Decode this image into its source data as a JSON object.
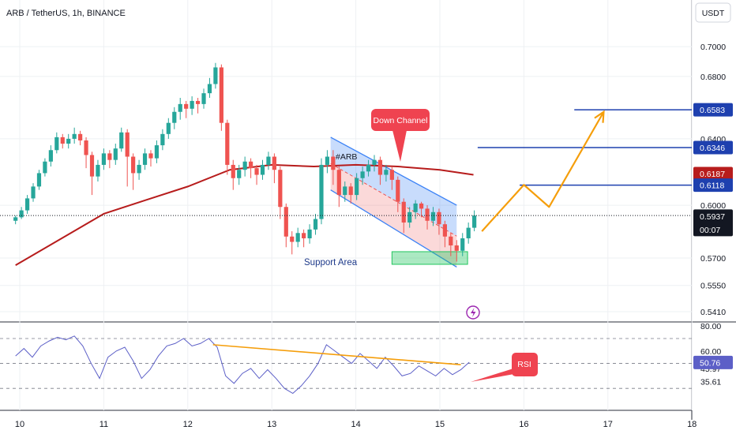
{
  "header": {
    "title": "ARB / TetherUS, 1h, BINANCE"
  },
  "currency_button": {
    "label": "USDT"
  },
  "colors": {
    "up": "#26a69a",
    "down": "#ef5350",
    "ma": "#b71c1c",
    "level": "#1e40af",
    "projection": "#f59e0b",
    "rsi": "#5c5fc7",
    "channel": "#3b82f6",
    "support": "#22c55e"
  },
  "chart_data": {
    "type": "candlestick",
    "title": "ARB / TetherUS, 1h, BINANCE",
    "x_ticks": [
      "10",
      "11",
      "12",
      "13",
      "14",
      "15",
      "16",
      "17",
      "18"
    ],
    "y_ticks": [
      "0.7000",
      "0.6800",
      "0.6400",
      "0.6000",
      "0.5700",
      "0.5550",
      "0.5410"
    ],
    "price_tags": [
      {
        "value": "0.6583",
        "color": "#1e40af"
      },
      {
        "value": "0.6346",
        "color": "#1e40af"
      },
      {
        "value": "0.6187",
        "color": "#b71c1c"
      },
      {
        "value": "0.6118",
        "color": "#1e40af"
      },
      {
        "value": "0.5937",
        "color": "#131722"
      }
    ],
    "countdown": "00:07",
    "horizontal_levels": [
      0.6583,
      0.6346,
      0.6118
    ],
    "moving_average": [
      [
        9.95,
        0.566
      ],
      [
        10.5,
        0.581
      ],
      [
        11.0,
        0.595
      ],
      [
        11.5,
        0.603
      ],
      [
        12.0,
        0.611
      ],
      [
        12.5,
        0.621
      ],
      [
        13.0,
        0.624
      ],
      [
        13.5,
        0.623
      ],
      [
        14.0,
        0.624
      ],
      [
        14.5,
        0.623
      ],
      [
        15.0,
        0.621
      ],
      [
        15.4,
        0.618
      ]
    ],
    "candles": [
      [
        9.95,
        0.591,
        0.593,
        0.589,
        0.594
      ],
      [
        10.02,
        0.593,
        0.597,
        0.592,
        0.599
      ],
      [
        10.09,
        0.597,
        0.604,
        0.595,
        0.606
      ],
      [
        10.16,
        0.604,
        0.611,
        0.602,
        0.613
      ],
      [
        10.23,
        0.611,
        0.619,
        0.609,
        0.621
      ],
      [
        10.3,
        0.619,
        0.626,
        0.617,
        0.628
      ],
      [
        10.37,
        0.626,
        0.633,
        0.623,
        0.636
      ],
      [
        10.44,
        0.633,
        0.641,
        0.631,
        0.644
      ],
      [
        10.51,
        0.641,
        0.637,
        0.634,
        0.643
      ],
      [
        10.58,
        0.637,
        0.64,
        0.634,
        0.643
      ],
      [
        10.65,
        0.64,
        0.643,
        0.637,
        0.647
      ],
      [
        10.72,
        0.643,
        0.639,
        0.636,
        0.645
      ],
      [
        10.79,
        0.639,
        0.63,
        0.622,
        0.641
      ],
      [
        10.86,
        0.63,
        0.617,
        0.606,
        0.632
      ],
      [
        10.93,
        0.617,
        0.624,
        0.614,
        0.627
      ],
      [
        11.0,
        0.624,
        0.631,
        0.621,
        0.634
      ],
      [
        11.07,
        0.631,
        0.627,
        0.622,
        0.633
      ],
      [
        11.14,
        0.627,
        0.634,
        0.624,
        0.637
      ],
      [
        11.21,
        0.634,
        0.644,
        0.632,
        0.647
      ],
      [
        11.28,
        0.644,
        0.629,
        0.611,
        0.646
      ],
      [
        11.35,
        0.629,
        0.619,
        0.609,
        0.631
      ],
      [
        11.42,
        0.619,
        0.624,
        0.615,
        0.627
      ],
      [
        11.49,
        0.624,
        0.631,
        0.621,
        0.634
      ],
      [
        11.56,
        0.631,
        0.628,
        0.623,
        0.633
      ],
      [
        11.63,
        0.628,
        0.636,
        0.625,
        0.639
      ],
      [
        11.7,
        0.636,
        0.643,
        0.633,
        0.646
      ],
      [
        11.77,
        0.643,
        0.65,
        0.64,
        0.653
      ],
      [
        11.84,
        0.65,
        0.657,
        0.646,
        0.66
      ],
      [
        11.91,
        0.657,
        0.662,
        0.652,
        0.666
      ],
      [
        11.98,
        0.662,
        0.659,
        0.653,
        0.664
      ],
      [
        12.05,
        0.659,
        0.664,
        0.655,
        0.667
      ],
      [
        12.12,
        0.664,
        0.662,
        0.656,
        0.666
      ],
      [
        12.19,
        0.662,
        0.669,
        0.659,
        0.672
      ],
      [
        12.26,
        0.669,
        0.675,
        0.666,
        0.679
      ],
      [
        12.33,
        0.675,
        0.686,
        0.672,
        0.689
      ],
      [
        12.4,
        0.686,
        0.65,
        0.645,
        0.688
      ],
      [
        12.47,
        0.65,
        0.624,
        0.618,
        0.652
      ],
      [
        12.54,
        0.624,
        0.616,
        0.609,
        0.627
      ],
      [
        12.61,
        0.616,
        0.621,
        0.612,
        0.624
      ],
      [
        12.68,
        0.621,
        0.626,
        0.617,
        0.629
      ],
      [
        12.75,
        0.626,
        0.622,
        0.616,
        0.628
      ],
      [
        12.82,
        0.622,
        0.618,
        0.612,
        0.624
      ],
      [
        12.89,
        0.618,
        0.624,
        0.615,
        0.627
      ],
      [
        12.96,
        0.624,
        0.629,
        0.621,
        0.632
      ],
      [
        13.03,
        0.629,
        0.621,
        0.613,
        0.631
      ],
      [
        13.1,
        0.621,
        0.599,
        0.592,
        0.623
      ],
      [
        13.17,
        0.599,
        0.582,
        0.576,
        0.601
      ],
      [
        13.24,
        0.582,
        0.579,
        0.572,
        0.585
      ],
      [
        13.31,
        0.579,
        0.584,
        0.576,
        0.587
      ],
      [
        13.38,
        0.584,
        0.581,
        0.576,
        0.586
      ],
      [
        13.45,
        0.581,
        0.586,
        0.578,
        0.589
      ],
      [
        13.52,
        0.586,
        0.592,
        0.583,
        0.595
      ],
      [
        13.59,
        0.592,
        0.624,
        0.589,
        0.628
      ],
      [
        13.66,
        0.624,
        0.629,
        0.619,
        0.633
      ],
      [
        13.73,
        0.629,
        0.621,
        0.612,
        0.633
      ],
      [
        13.8,
        0.621,
        0.606,
        0.599,
        0.623
      ],
      [
        13.87,
        0.606,
        0.611,
        0.602,
        0.614
      ],
      [
        13.94,
        0.611,
        0.606,
        0.601,
        0.613
      ],
      [
        14.01,
        0.606,
        0.616,
        0.603,
        0.619
      ],
      [
        14.08,
        0.616,
        0.62,
        0.612,
        0.623
      ],
      [
        14.15,
        0.62,
        0.624,
        0.617,
        0.627
      ],
      [
        14.22,
        0.624,
        0.627,
        0.62,
        0.63
      ],
      [
        14.29,
        0.627,
        0.618,
        0.612,
        0.629
      ],
      [
        14.36,
        0.618,
        0.621,
        0.614,
        0.624
      ],
      [
        14.43,
        0.621,
        0.615,
        0.609,
        0.623
      ],
      [
        14.5,
        0.615,
        0.602,
        0.596,
        0.617
      ],
      [
        14.57,
        0.602,
        0.59,
        0.584,
        0.604
      ],
      [
        14.64,
        0.59,
        0.596,
        0.587,
        0.599
      ],
      [
        14.71,
        0.596,
        0.601,
        0.592,
        0.603
      ],
      [
        14.78,
        0.601,
        0.598,
        0.593,
        0.602
      ],
      [
        14.85,
        0.598,
        0.591,
        0.586,
        0.6
      ],
      [
        14.92,
        0.591,
        0.596,
        0.588,
        0.599
      ],
      [
        14.99,
        0.596,
        0.589,
        0.583,
        0.598
      ],
      [
        15.06,
        0.589,
        0.582,
        0.576,
        0.591
      ],
      [
        15.13,
        0.582,
        0.577,
        0.571,
        0.584
      ],
      [
        15.2,
        0.577,
        0.574,
        0.568,
        0.58
      ],
      [
        15.27,
        0.574,
        0.581,
        0.571,
        0.584
      ],
      [
        15.34,
        0.581,
        0.587,
        0.578,
        0.59
      ],
      [
        15.41,
        0.587,
        0.594,
        0.585,
        0.597
      ]
    ],
    "down_channel": {
      "upper": [
        [
          13.7,
          0.641
        ],
        [
          15.2,
          0.6
        ]
      ],
      "lower": [
        [
          13.7,
          0.609
        ],
        [
          15.2,
          0.565
        ]
      ]
    },
    "support_zone": {
      "x": [
        14.43,
        15.33
      ],
      "y": [
        0.5665,
        0.5735
      ]
    },
    "projection": [
      [
        15.5,
        0.585
      ],
      [
        16.0,
        0.612
      ],
      [
        16.3,
        0.599
      ],
      [
        16.95,
        0.657
      ]
    ],
    "annotations": {
      "down_channel": "Down Channel",
      "support": "Support Area",
      "rsi": "RSI",
      "symbol": "#ARB"
    },
    "rsi": {
      "y_ticks": [
        "80.00",
        "60.00",
        "45.97",
        "35.61"
      ],
      "current_value": "50.76",
      "bands": [
        70,
        50,
        30
      ],
      "ylim": [
        20,
        82
      ],
      "values": [
        [
          9.95,
          56
        ],
        [
          10.05,
          62
        ],
        [
          10.15,
          55
        ],
        [
          10.25,
          64
        ],
        [
          10.35,
          68
        ],
        [
          10.45,
          71
        ],
        [
          10.55,
          69
        ],
        [
          10.65,
          72
        ],
        [
          10.75,
          64
        ],
        [
          10.85,
          50
        ],
        [
          10.95,
          38
        ],
        [
          11.05,
          55
        ],
        [
          11.15,
          60
        ],
        [
          11.25,
          63
        ],
        [
          11.35,
          52
        ],
        [
          11.45,
          38
        ],
        [
          11.55,
          45
        ],
        [
          11.65,
          56
        ],
        [
          11.75,
          64
        ],
        [
          11.85,
          66
        ],
        [
          11.95,
          70
        ],
        [
          12.05,
          64
        ],
        [
          12.15,
          66
        ],
        [
          12.25,
          70
        ],
        [
          12.35,
          63
        ],
        [
          12.45,
          40
        ],
        [
          12.55,
          34
        ],
        [
          12.65,
          42
        ],
        [
          12.75,
          46
        ],
        [
          12.85,
          38
        ],
        [
          12.95,
          45
        ],
        [
          13.05,
          38
        ],
        [
          13.15,
          30
        ],
        [
          13.25,
          26
        ],
        [
          13.35,
          32
        ],
        [
          13.45,
          40
        ],
        [
          13.55,
          50
        ],
        [
          13.65,
          65
        ],
        [
          13.75,
          60
        ],
        [
          13.85,
          55
        ],
        [
          13.95,
          50
        ],
        [
          14.05,
          58
        ],
        [
          14.15,
          52
        ],
        [
          14.25,
          46
        ],
        [
          14.35,
          55
        ],
        [
          14.45,
          48
        ],
        [
          14.55,
          40
        ],
        [
          14.65,
          42
        ],
        [
          14.75,
          48
        ],
        [
          14.85,
          44
        ],
        [
          14.95,
          40
        ],
        [
          15.05,
          46
        ],
        [
          15.15,
          41
        ],
        [
          15.25,
          45
        ],
        [
          15.35,
          51
        ]
      ],
      "trendline": [
        [
          12.3,
          65
        ],
        [
          15.25,
          49
        ]
      ]
    }
  }
}
